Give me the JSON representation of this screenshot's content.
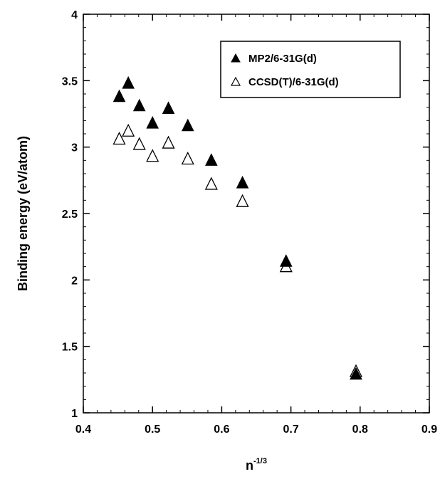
{
  "chart_data": {
    "type": "scatter",
    "xlabel_base": "n",
    "xlabel_sup": "-1/3",
    "ylabel": "Binding energy (eV/atom)",
    "xlim": [
      0.4,
      0.9
    ],
    "ylim": [
      1,
      4
    ],
    "x_ticks": [
      0.4,
      0.5,
      0.6,
      0.7,
      0.8,
      0.9
    ],
    "x_tick_labels": [
      "0.4",
      "0.5",
      "0.6",
      "0.7",
      "0.8",
      "0.9"
    ],
    "y_ticks": [
      1,
      1.5,
      2,
      2.5,
      3,
      3.5,
      4
    ],
    "y_tick_labels": [
      "1",
      "1.5",
      "2",
      "2.5",
      "3",
      "3.5",
      "4"
    ],
    "grid": false,
    "legend_position": "top-right",
    "series": [
      {
        "name": "MP2/6-31G(d)",
        "marker": "filled-triangle",
        "color": "#000000",
        "points": [
          {
            "x": 0.452,
            "y": 3.38
          },
          {
            "x": 0.465,
            "y": 3.48
          },
          {
            "x": 0.481,
            "y": 3.31
          },
          {
            "x": 0.5,
            "y": 3.18
          },
          {
            "x": 0.523,
            "y": 3.29
          },
          {
            "x": 0.551,
            "y": 3.16
          },
          {
            "x": 0.585,
            "y": 2.9
          },
          {
            "x": 0.63,
            "y": 2.73
          },
          {
            "x": 0.693,
            "y": 2.14
          },
          {
            "x": 0.794,
            "y": 1.29
          }
        ]
      },
      {
        "name": "CCSD(T)/6-31G(d)",
        "marker": "open-triangle",
        "color": "#000000",
        "points": [
          {
            "x": 0.452,
            "y": 3.06
          },
          {
            "x": 0.465,
            "y": 3.12
          },
          {
            "x": 0.481,
            "y": 3.02
          },
          {
            "x": 0.5,
            "y": 2.93
          },
          {
            "x": 0.523,
            "y": 3.03
          },
          {
            "x": 0.551,
            "y": 2.91
          },
          {
            "x": 0.585,
            "y": 2.72
          },
          {
            "x": 0.63,
            "y": 2.59
          },
          {
            "x": 0.693,
            "y": 2.1
          },
          {
            "x": 0.794,
            "y": 1.31
          }
        ]
      }
    ]
  }
}
